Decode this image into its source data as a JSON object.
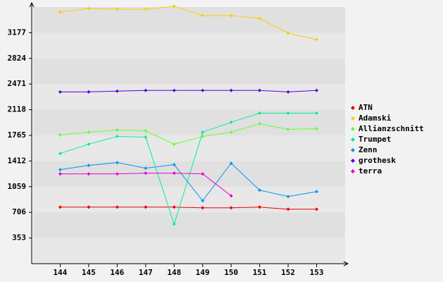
{
  "chart_data": {
    "type": "line",
    "x": [
      144,
      145,
      146,
      147,
      148,
      149,
      150,
      151,
      152,
      153
    ],
    "xlim": [
      143,
      154
    ],
    "xticks": [
      144,
      145,
      146,
      147,
      148,
      149,
      150,
      151,
      152,
      153
    ],
    "ylim": [
      0,
      3530
    ],
    "yticks": [
      353,
      706,
      1059,
      1412,
      1765,
      2118,
      2471,
      2824,
      3177
    ],
    "legend": "right",
    "series": [
      {
        "name": "ATN",
        "color": "#ee0000",
        "values": [
          778,
          778,
          778,
          778,
          778,
          768,
          768,
          778,
          749,
          749
        ]
      },
      {
        "name": "Adamski",
        "color": "#ffcc00",
        "values": [
          3462,
          3511,
          3501,
          3501,
          3540,
          3413,
          3413,
          3374,
          3170,
          3083
        ]
      },
      {
        "name": "Allianzschnitt",
        "color": "#66ff33",
        "values": [
          1770,
          1809,
          1838,
          1828,
          1643,
          1751,
          1809,
          1925,
          1848,
          1857
        ]
      },
      {
        "name": "Trumpet",
        "color": "#00ee99",
        "values": [
          1517,
          1643,
          1751,
          1741,
          545,
          1809,
          1945,
          2071,
          2071,
          2071
        ]
      },
      {
        "name": "Zenn",
        "color": "#0099ee",
        "values": [
          1293,
          1352,
          1391,
          1313,
          1362,
          866,
          1381,
          1011,
          924,
          992
        ]
      },
      {
        "name": "grothesk",
        "color": "#5500dd",
        "values": [
          2363,
          2363,
          2373,
          2383,
          2383,
          2383,
          2383,
          2383,
          2363,
          2383
        ]
      },
      {
        "name": "terra",
        "color": "#ee00cc",
        "values": [
          1235,
          1235,
          1235,
          1245,
          1245,
          1235,
          934,
          null,
          null,
          null
        ]
      }
    ]
  }
}
